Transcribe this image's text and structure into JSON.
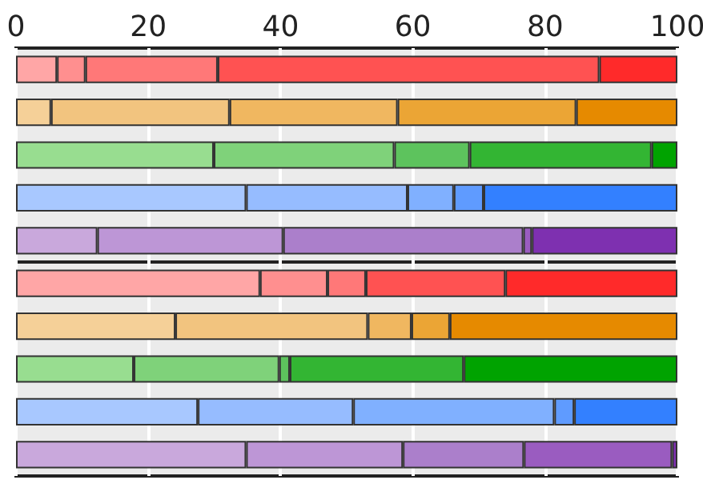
{
  "chart_data": {
    "type": "bar",
    "orientation": "horizontal",
    "stacked": true,
    "categories": [
      null,
      null,
      null,
      null,
      null,
      null,
      null,
      null,
      null,
      null
    ],
    "xlim": [
      0,
      100
    ],
    "xticks": [
      0,
      20,
      40,
      60,
      80,
      100
    ],
    "grid": "x",
    "tick_labels": "x",
    "series": [
      {
        "values": [
          6.2,
          5.3,
          29.9,
          34.8,
          12.3,
          36.9,
          24.1,
          17.8,
          27.5,
          34.8
        ],
        "colors": [
          "#ffa6a6",
          "#f5d098",
          "#98dd90",
          "#a8c8ff",
          "#c9a8dc",
          "#ffa6a6",
          "#f5d098",
          "#98dd90",
          "#a8c8ff",
          "#c9a8dc"
        ]
      },
      {
        "values": [
          4.3,
          27,
          27.3,
          24.4,
          28.1,
          10.2,
          29.1,
          22,
          23.5,
          23.7
        ],
        "colors": [
          "#ff8f8f",
          "#f2c47f",
          "#7fd27a",
          "#96bcff",
          "#bd96d6",
          "#ff8f8f",
          "#f2c47f",
          "#7fd27a",
          "#96bcff",
          "#bd96d6"
        ]
      },
      {
        "values": [
          20,
          25.4,
          11.4,
          7,
          36.3,
          5.8,
          6.6,
          1.6,
          30.4,
          18.3
        ],
        "colors": [
          "#ff7878",
          "#f0b760",
          "#5dc35d",
          "#80b0ff",
          "#ab7fcb",
          "#ff7878",
          "#f0b760",
          "#5dc35d",
          "#80b0ff",
          "#ab7fcb"
        ]
      },
      {
        "values": [
          57.7,
          27,
          27.5,
          4.5,
          1.3,
          21.1,
          5.8,
          26.3,
          3,
          22.4
        ],
        "colors": [
          "#ff5252",
          "#eba535",
          "#33b533",
          "#5f9bff",
          "#9a5cc0",
          "#ff5252",
          "#eba535",
          "#33b533",
          "#5f9bff",
          "#9a5cc0"
        ]
      },
      {
        "values": [
          11.8,
          15.3,
          3.9,
          29.3,
          22,
          26,
          34.4,
          32.3,
          15.6,
          0.8
        ],
        "colors": [
          "#ff2a2a",
          "#e68a00",
          "#00a300",
          "#3380ff",
          "#7e30b0",
          "#ff2a2a",
          "#e68a00",
          "#00a300",
          "#3380ff",
          "#7e30b0"
        ]
      }
    ]
  }
}
